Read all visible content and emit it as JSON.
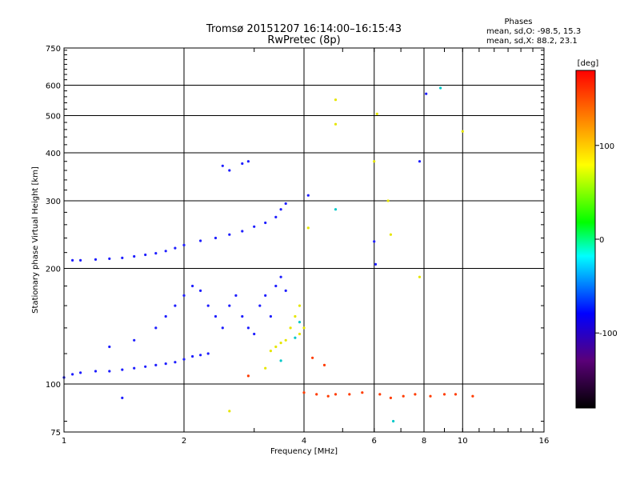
{
  "header": {
    "title_line1": "Tromsø 20151207 16:14:00–16:15:43",
    "title_line2": "RwPretec (8p)",
    "stats_heading": "Phases",
    "stats_line1": "mean, sd,O: -98.5, 15.3",
    "stats_line2": "mean, sd,X:  88.2, 23.1"
  },
  "chart_data": {
    "type": "scatter",
    "title": "Tromsø 20151207 16:14:00–16:15:43",
    "subtitle": "RwPretec (8p)",
    "xlabel": "Frequency [MHz]",
    "ylabel": "Stationary phase Virtual Height [km]",
    "x_scale": "log",
    "y_scale": "log",
    "xlim": [
      1,
      16
    ],
    "ylim": [
      75,
      750
    ],
    "x_ticks": [
      1,
      2,
      4,
      6,
      8,
      10,
      16
    ],
    "y_ticks": [
      75,
      100,
      200,
      300,
      400,
      500,
      600,
      750
    ],
    "grid": true,
    "colorbar": {
      "label": "[deg]",
      "range": [
        -180,
        180
      ],
      "ticks": [
        100,
        0,
        -100
      ],
      "colors": [
        "#000000",
        "#5a0078",
        "#0000ff",
        "#00ffff",
        "#00ff00",
        "#ffff00",
        "#ff8000",
        "#ff0000"
      ]
    },
    "series": [
      {
        "name": "",
        "color": "#1e1eff",
        "points": [
          [
            1.0,
            104
          ],
          [
            1.05,
            106
          ],
          [
            1.1,
            107
          ],
          [
            1.2,
            108
          ],
          [
            1.3,
            108
          ],
          [
            1.4,
            109
          ],
          [
            1.5,
            110
          ],
          [
            1.6,
            111
          ],
          [
            1.7,
            112
          ],
          [
            1.8,
            113
          ],
          [
            1.9,
            114
          ],
          [
            2.0,
            116
          ],
          [
            2.1,
            118
          ],
          [
            2.2,
            119
          ],
          [
            2.3,
            120
          ],
          [
            1.05,
            210
          ],
          [
            1.1,
            210
          ],
          [
            1.2,
            211
          ],
          [
            1.3,
            212
          ],
          [
            1.4,
            213
          ],
          [
            1.5,
            215
          ],
          [
            1.6,
            217
          ],
          [
            1.7,
            219
          ],
          [
            1.8,
            222
          ],
          [
            1.9,
            226
          ],
          [
            2.0,
            230
          ],
          [
            2.2,
            236
          ],
          [
            2.4,
            240
          ],
          [
            2.6,
            245
          ],
          [
            2.8,
            250
          ],
          [
            3.0,
            257
          ],
          [
            3.2,
            263
          ],
          [
            3.4,
            272
          ],
          [
            3.5,
            285
          ],
          [
            3.6,
            295
          ],
          [
            2.5,
            370
          ],
          [
            2.6,
            360
          ],
          [
            2.8,
            375
          ],
          [
            2.9,
            380
          ],
          [
            1.3,
            125
          ],
          [
            1.5,
            130
          ],
          [
            1.7,
            140
          ],
          [
            1.8,
            150
          ],
          [
            1.9,
            160
          ],
          [
            2.0,
            170
          ],
          [
            2.1,
            180
          ],
          [
            2.2,
            175
          ],
          [
            2.3,
            160
          ],
          [
            2.4,
            150
          ],
          [
            2.5,
            140
          ],
          [
            2.6,
            160
          ],
          [
            2.7,
            170
          ],
          [
            2.8,
            150
          ],
          [
            2.9,
            140
          ],
          [
            3.0,
            135
          ],
          [
            3.1,
            160
          ],
          [
            3.2,
            170
          ],
          [
            3.3,
            150
          ],
          [
            3.4,
            180
          ],
          [
            3.5,
            190
          ],
          [
            3.6,
            175
          ],
          [
            1.4,
            92
          ],
          [
            4.1,
            310
          ],
          [
            6.0,
            235
          ],
          [
            6.05,
            205
          ],
          [
            8.1,
            570
          ],
          [
            7.8,
            380
          ]
        ]
      },
      {
        "name": "",
        "color": "#e6e600",
        "points": [
          [
            3.2,
            110
          ],
          [
            3.4,
            125
          ],
          [
            3.6,
            130
          ],
          [
            3.7,
            140
          ],
          [
            3.8,
            150
          ],
          [
            3.9,
            135
          ],
          [
            4.0,
            140
          ],
          [
            3.5,
            128
          ],
          [
            3.3,
            122
          ],
          [
            3.9,
            160
          ],
          [
            4.8,
            550
          ],
          [
            4.8,
            475
          ],
          [
            6.1,
            505
          ],
          [
            6.5,
            300
          ],
          [
            6.6,
            245
          ],
          [
            7.8,
            190
          ],
          [
            10.0,
            455
          ],
          [
            2.6,
            85
          ],
          [
            6.0,
            380
          ],
          [
            4.1,
            255
          ]
        ]
      },
      {
        "name": "",
        "color": "#ff3c00",
        "points": [
          [
            4.0,
            95
          ],
          [
            4.3,
            94
          ],
          [
            4.6,
            93
          ],
          [
            4.8,
            94
          ],
          [
            5.2,
            94
          ],
          [
            5.6,
            95
          ],
          [
            6.2,
            94
          ],
          [
            6.6,
            92
          ],
          [
            7.1,
            93
          ],
          [
            7.6,
            94
          ],
          [
            8.3,
            93
          ],
          [
            9.0,
            94
          ],
          [
            9.6,
            94
          ],
          [
            10.6,
            93
          ],
          [
            4.2,
            117
          ],
          [
            4.5,
            112
          ],
          [
            2.9,
            105
          ]
        ]
      },
      {
        "name": "",
        "color": "#00c8c8",
        "points": [
          [
            4.8,
            285
          ],
          [
            3.5,
            115
          ],
          [
            3.8,
            132
          ],
          [
            3.9,
            145
          ],
          [
            6.7,
            80
          ],
          [
            8.8,
            590
          ]
        ]
      }
    ]
  }
}
